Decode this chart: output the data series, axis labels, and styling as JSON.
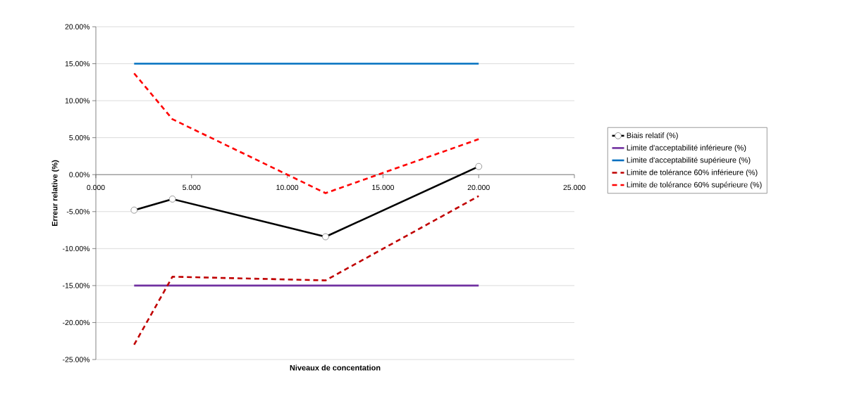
{
  "chart_data": {
    "type": "line",
    "xlabel": "Niveaux de concentation",
    "ylabel": "Erreur relative (%)",
    "x": [
      2,
      4,
      12,
      20
    ],
    "series": [
      {
        "name": "Biais relatif (%)",
        "color": "#000000",
        "values": [
          -4.8,
          -3.3,
          -8.4,
          1.1
        ],
        "marker": "circle",
        "line_style": "solid"
      },
      {
        "name": "Limite d'acceptabilité inférieure (%)",
        "color": "#7030a0",
        "values": [
          -15,
          -15,
          -15,
          -15
        ],
        "marker": "none",
        "line_style": "solid"
      },
      {
        "name": "Limite d'acceptabilité supérieure (%)",
        "color": "#0070c0",
        "values": [
          15,
          15,
          15,
          15
        ],
        "marker": "none",
        "line_style": "solid"
      },
      {
        "name": "Limite de tolérance 60% inférieure (%)",
        "color": "#c00000",
        "values": [
          -23.0,
          -13.8,
          -14.3,
          -2.9
        ],
        "marker": "none",
        "line_style": "dashed"
      },
      {
        "name": "Limite de tolérance 60% supérieure (%)",
        "color": "#ff0000",
        "values": [
          13.7,
          7.5,
          -2.5,
          4.8
        ],
        "marker": "none",
        "line_style": "dashed"
      }
    ],
    "xlim": [
      0,
      25
    ],
    "xticks": [
      {
        "value": 0,
        "label": "0.000"
      },
      {
        "value": 5,
        "label": "5.000"
      },
      {
        "value": 10,
        "label": "10.000"
      },
      {
        "value": 15,
        "label": "15.000"
      },
      {
        "value": 20,
        "label": "20.000"
      },
      {
        "value": 25,
        "label": "25.000"
      }
    ],
    "ylim": [
      -25,
      20
    ],
    "yticks": [
      {
        "value": -25,
        "label": "-25.00%"
      },
      {
        "value": -20,
        "label": "-20.00%"
      },
      {
        "value": -15,
        "label": "-15.00%"
      },
      {
        "value": -10,
        "label": "-10.00%"
      },
      {
        "value": -5,
        "label": "-5.00%"
      },
      {
        "value": 0,
        "label": "0.00%"
      },
      {
        "value": 5,
        "label": "5.00%"
      },
      {
        "value": 10,
        "label": "10.00%"
      },
      {
        "value": 15,
        "label": "15.00%"
      },
      {
        "value": 20,
        "label": "20.00%"
      }
    ],
    "grid": "y",
    "legend": "right"
  }
}
